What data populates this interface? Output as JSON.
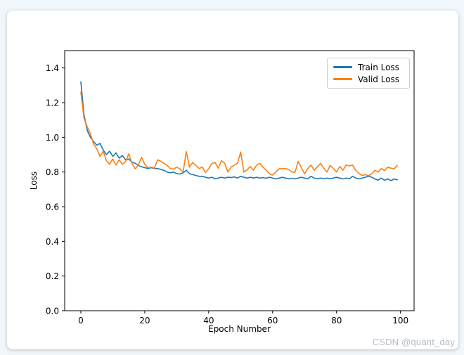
{
  "watermark": {
    "text": "CSDN @quant_day"
  },
  "colors": {
    "train": "#1f77b4",
    "valid": "#ff7f0e",
    "spine": "#000000",
    "legend_border": "#cccccc",
    "card_bg": "#ffffff",
    "page_bg": "#f1f6fa",
    "watermark_gray": "#b6babf"
  },
  "chart_data": {
    "type": "line",
    "title": "",
    "xlabel": "Epoch Number",
    "ylabel": "Loss",
    "xlim": [
      -5.05,
      104.25
    ],
    "ylim": [
      0,
      1.5
    ],
    "grid": false,
    "legend_position": "upper right",
    "xticks": {
      "values": [
        0,
        20,
        40,
        60,
        80,
        100
      ],
      "labels": [
        "0",
        "20",
        "40",
        "60",
        "80",
        "100"
      ]
    },
    "yticks": {
      "values": [
        0.0,
        0.2,
        0.4,
        0.6,
        0.8,
        1.0,
        1.2,
        1.4
      ],
      "labels": [
        "0.0",
        "0.2",
        "0.4",
        "0.6",
        "0.8",
        "1.0",
        "1.2",
        "1.4"
      ]
    },
    "x": [
      0,
      1,
      2,
      3,
      4,
      5,
      6,
      7,
      8,
      9,
      10,
      11,
      12,
      13,
      14,
      15,
      16,
      17,
      18,
      19,
      20,
      21,
      22,
      23,
      24,
      25,
      26,
      27,
      28,
      29,
      30,
      31,
      32,
      33,
      34,
      35,
      36,
      37,
      38,
      39,
      40,
      41,
      42,
      43,
      44,
      45,
      46,
      47,
      48,
      49,
      50,
      51,
      52,
      53,
      54,
      55,
      56,
      57,
      58,
      59,
      60,
      61,
      62,
      63,
      64,
      65,
      66,
      67,
      68,
      69,
      70,
      71,
      72,
      73,
      74,
      75,
      76,
      77,
      78,
      79,
      80,
      81,
      82,
      83,
      84,
      85,
      86,
      87,
      88,
      89,
      90,
      91,
      92,
      93,
      94,
      95,
      96,
      97,
      98,
      99
    ],
    "series": [
      {
        "name": "Train Loss",
        "color": "#1f77b4",
        "values": [
          1.32,
          1.13,
          1.04,
          1.0,
          0.975,
          0.955,
          0.965,
          0.928,
          0.9,
          0.92,
          0.89,
          0.91,
          0.88,
          0.895,
          0.87,
          0.875,
          0.857,
          0.85,
          0.838,
          0.83,
          0.825,
          0.82,
          0.825,
          0.82,
          0.82,
          0.815,
          0.81,
          0.8,
          0.795,
          0.8,
          0.79,
          0.788,
          0.795,
          0.81,
          0.79,
          0.785,
          0.78,
          0.775,
          0.775,
          0.77,
          0.765,
          0.77,
          0.76,
          0.765,
          0.77,
          0.765,
          0.77,
          0.768,
          0.772,
          0.765,
          0.775,
          0.77,
          0.765,
          0.77,
          0.765,
          0.77,
          0.765,
          0.768,
          0.764,
          0.77,
          0.765,
          0.76,
          0.765,
          0.77,
          0.765,
          0.76,
          0.764,
          0.76,
          0.765,
          0.77,
          0.765,
          0.76,
          0.775,
          0.765,
          0.76,
          0.765,
          0.76,
          0.765,
          0.76,
          0.765,
          0.77,
          0.765,
          0.76,
          0.765,
          0.76,
          0.775,
          0.765,
          0.76,
          0.765,
          0.77,
          0.775,
          0.77,
          0.76,
          0.753,
          0.765,
          0.752,
          0.76,
          0.75,
          0.76,
          0.755
        ]
      },
      {
        "name": "Valid Loss",
        "color": "#ff7f0e",
        "values": [
          1.26,
          1.11,
          1.06,
          1.02,
          0.96,
          0.935,
          0.89,
          0.92,
          0.865,
          0.845,
          0.875,
          0.84,
          0.87,
          0.845,
          0.86,
          0.905,
          0.85,
          0.818,
          0.84,
          0.885,
          0.845,
          0.825,
          0.828,
          0.822,
          0.87,
          0.862,
          0.85,
          0.838,
          0.82,
          0.817,
          0.828,
          0.818,
          0.8,
          0.918,
          0.828,
          0.855,
          0.838,
          0.82,
          0.828,
          0.798,
          0.818,
          0.848,
          0.855,
          0.822,
          0.865,
          0.85,
          0.8,
          0.828,
          0.84,
          0.85,
          0.915,
          0.8,
          0.812,
          0.832,
          0.81,
          0.84,
          0.85,
          0.828,
          0.81,
          0.79,
          0.782,
          0.8,
          0.818,
          0.82,
          0.82,
          0.815,
          0.8,
          0.798,
          0.862,
          0.825,
          0.79,
          0.82,
          0.84,
          0.81,
          0.83,
          0.85,
          0.822,
          0.8,
          0.838,
          0.82,
          0.8,
          0.832,
          0.81,
          0.84,
          0.835,
          0.84,
          0.81,
          0.792,
          0.78,
          0.785,
          0.778,
          0.79,
          0.81,
          0.8,
          0.82,
          0.808,
          0.828,
          0.822,
          0.818,
          0.838
        ]
      }
    ]
  }
}
